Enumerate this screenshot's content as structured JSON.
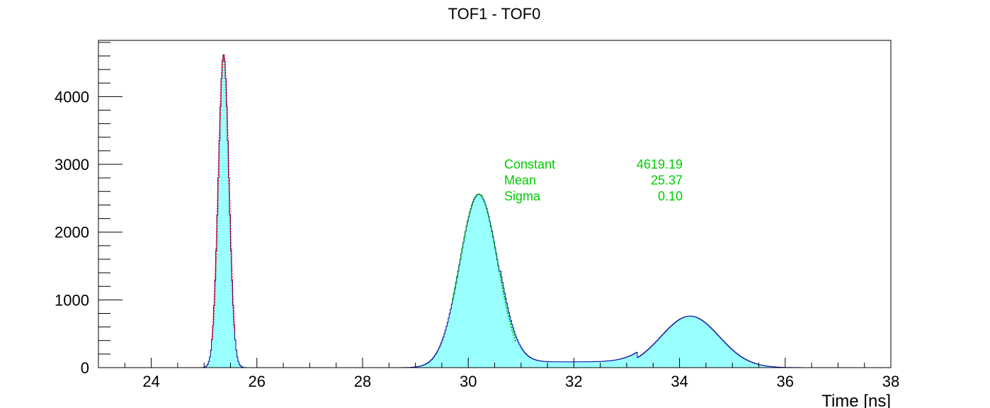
{
  "chart_data": {
    "type": "histogram",
    "title": "TOF1 - TOF0",
    "xlabel": "Time [ns]",
    "ylabel": "",
    "xlim": [
      23,
      38
    ],
    "ylim": [
      0,
      4830
    ],
    "x_ticks": [
      24,
      26,
      28,
      30,
      32,
      34,
      36,
      38
    ],
    "y_ticks": [
      0,
      1000,
      2000,
      3000,
      4000
    ],
    "grid": false,
    "fill_color": "#99ffff",
    "line_color": "#000099",
    "bin_width": 0.02,
    "components": [
      {
        "name": "peak1",
        "amplitude": 4619.19,
        "mean": 25.37,
        "sigma": 0.1
      },
      {
        "name": "peak2",
        "amplitude": 2560,
        "mean": 30.2,
        "sigma": 0.36
      },
      {
        "name": "peak3",
        "amplitude": 760,
        "mean": 34.2,
        "sigma": 0.55
      },
      {
        "name": "plateau",
        "amplitude": 85,
        "from": 30.6,
        "to": 33.2
      }
    ],
    "fits": [
      {
        "color": "#ff0000",
        "range": [
          25.15,
          25.58
        ],
        "amplitude": 4619.19,
        "mean": 25.37,
        "sigma": 0.1
      },
      {
        "color": "#00cc00",
        "range": [
          29.7,
          30.9
        ],
        "amplitude": 2560,
        "mean": 30.2,
        "sigma": 0.36
      }
    ],
    "stats": {
      "color": "#00cc00",
      "rows": [
        {
          "label": "Constant",
          "value": "4619.19"
        },
        {
          "label": "Mean",
          "value": "25.37"
        },
        {
          "label": "Sigma",
          "value": "0.10"
        }
      ]
    }
  }
}
